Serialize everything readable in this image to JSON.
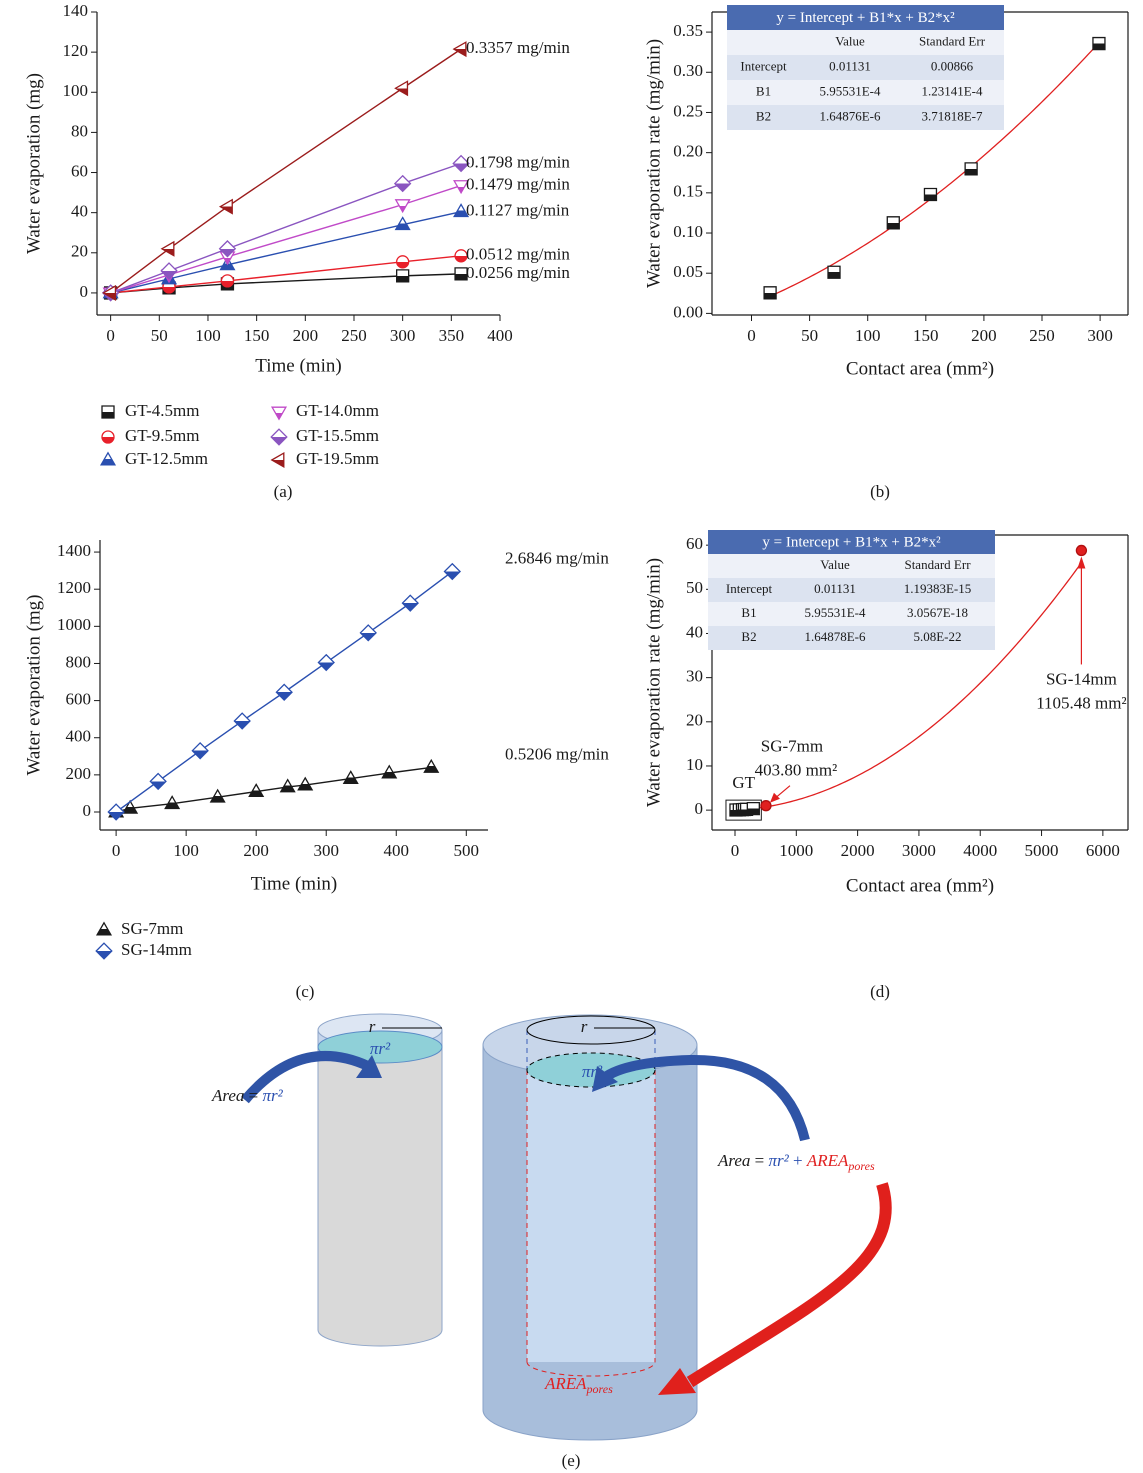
{
  "chart_data": [
    {
      "type": "line",
      "caption": "(a)",
      "x_label": "Time (min)",
      "y_label": "Water evaporation (mg)",
      "x": [
        0,
        60,
        120,
        300,
        360
      ],
      "series": [
        {
          "name": "GT-4.5mm",
          "color": "#1a1a1a",
          "marker": "square",
          "values": [
            0,
            2.5,
            4.5,
            8.5,
            9.5
          ],
          "annotation": "0.0256 mg/min"
        },
        {
          "name": "GT-9.5mm",
          "color": "#e8202a",
          "marker": "circle",
          "values": [
            0,
            3,
            6,
            15.5,
            18.5
          ],
          "annotation": "0.0512 mg/min"
        },
        {
          "name": "GT-12.5mm",
          "color": "#2a4fb0",
          "marker": "triangle-up",
          "values": [
            0,
            7,
            14,
            34,
            40.5
          ],
          "annotation": "0.1127 mg/min"
        },
        {
          "name": "GT-14.0mm",
          "color": "#c04ac8",
          "marker": "triangle-down",
          "values": [
            0,
            9,
            18,
            44,
            53.5
          ],
          "annotation": "0.1479 mg/min"
        },
        {
          "name": "GT-15.5mm",
          "color": "#8a55c0",
          "marker": "diamond",
          "values": [
            0,
            11,
            22,
            54.5,
            64.5
          ],
          "annotation": "0.1798 mg/min"
        },
        {
          "name": "GT-19.5mm",
          "color": "#9b1c1c",
          "marker": "triangle-left",
          "values": [
            0,
            22,
            43,
            102,
            121.5
          ],
          "annotation": "0.3357 mg/min"
        }
      ],
      "xlim": [
        -14,
        400
      ],
      "xticks": [
        0,
        50,
        100,
        150,
        200,
        250,
        300,
        350,
        400
      ],
      "ylim": [
        -11,
        140
      ],
      "yticks": [
        0,
        20,
        40,
        60,
        80,
        100,
        120,
        140
      ],
      "legend": "bottom-left"
    },
    {
      "type": "scatter",
      "caption": "(b)",
      "x_label": "Contact area (mm²)",
      "y_label": "Water evaporation rate (mg/min)",
      "series": [
        {
          "color": "#1a1a1a",
          "marker": "square",
          "x": [
            16,
            71,
            122,
            154,
            189,
            299
          ],
          "values": [
            0.0256,
            0.0512,
            0.1127,
            0.1479,
            0.1798,
            0.3357
          ]
        }
      ],
      "fit_color": "#e02020",
      "table": {
        "title": "y = Intercept + B1*x + B2*x²",
        "columns": [
          "Value",
          "Standard Err"
        ],
        "rows": [
          [
            "Intercept",
            "0.01131",
            "0.00866"
          ],
          [
            "B1",
            "5.95531E-4",
            "1.23141E-4"
          ],
          [
            "B2",
            "1.64876E-6",
            "3.71818E-7"
          ]
        ]
      },
      "xlim": [
        -34,
        324
      ],
      "xticks": [
        0,
        50,
        100,
        150,
        200,
        250,
        300
      ],
      "ylim": [
        -0.002,
        0.375
      ],
      "yticks": [
        {
          "value": 0,
          "label": "0.00"
        },
        {
          "value": 0.05,
          "label": "0.05"
        },
        {
          "value": 0.1,
          "label": "0.10"
        },
        {
          "value": 0.15,
          "label": "0.15"
        },
        {
          "value": 0.2,
          "label": "0.20"
        },
        {
          "value": 0.25,
          "label": "0.25"
        },
        {
          "value": 0.3,
          "label": "0.30"
        },
        {
          "value": 0.35,
          "label": "0.35"
        }
      ]
    },
    {
      "type": "line",
      "caption": "(c)",
      "x_label": "Time (min)",
      "y_label": "Water evaporation (mg)",
      "series": [
        {
          "name": "SG-7mm",
          "color": "#1a1a1a",
          "marker": "triangle-up",
          "x": [
            0,
            20,
            80,
            145,
            200,
            245,
            270,
            335,
            390,
            450
          ],
          "values": [
            0,
            20,
            45,
            80,
            110,
            135,
            145,
            180,
            210,
            240
          ],
          "annotation": "0.5206 mg/min"
        },
        {
          "name": "SG-14mm",
          "color": "#2a4fb0",
          "marker": "diamond",
          "x": [
            0,
            60,
            120,
            180,
            240,
            300,
            360,
            420,
            480
          ],
          "values": [
            0,
            165,
            330,
            490,
            645,
            805,
            965,
            1125,
            1295
          ],
          "annotation": "2.6846 mg/min"
        }
      ],
      "xlim": [
        -23,
        531
      ],
      "xticks": [
        0,
        100,
        200,
        300,
        400,
        500
      ],
      "ylim": [
        -97,
        1465
      ],
      "yticks": [
        0,
        200,
        400,
        600,
        800,
        1000,
        1200,
        1400
      ],
      "legend": "bottom-left"
    },
    {
      "type": "scatter",
      "caption": "(d)",
      "x_label": "Contact area (mm²)",
      "y_label": "Water evaporation rate (mg/min)",
      "series": [
        {
          "name": "GT",
          "color": "#1a1a1a",
          "marker": "square",
          "x": [
            16,
            71,
            122,
            154,
            189,
            299
          ],
          "values": [
            0.0256,
            0.0512,
            0.1127,
            0.1479,
            0.1798,
            0.3357
          ]
        },
        {
          "name": "SG-7mm",
          "color": "#e02020",
          "marker": "ball",
          "x": [
            505
          ],
          "values": [
            1.0
          ],
          "annotation": "403.80 mm²"
        },
        {
          "name": "SG-14mm",
          "color": "#e02020",
          "marker": "ball",
          "x": [
            5650
          ],
          "values": [
            58.8
          ],
          "annotation": "1105.48 mm²"
        }
      ],
      "fit_color": "#e02020",
      "table": {
        "title": "y = Intercept + B1*x + B2*x²",
        "columns": [
          "Value",
          "Standard Err"
        ],
        "rows": [
          [
            "Intercept",
            "0.01131",
            "1.19383E-15"
          ],
          [
            "B1",
            "5.95531E-4",
            "3.0567E-18"
          ],
          [
            "B2",
            "1.64878E-6",
            "5.08E-22"
          ]
        ]
      },
      "xlim": [
        -375,
        6410
      ],
      "xticks": [
        0,
        1000,
        2000,
        3000,
        4000,
        5000,
        6000
      ],
      "ylim": [
        -4.5,
        62.3
      ],
      "yticks": [
        0,
        10,
        20,
        30,
        40,
        50,
        60
      ]
    }
  ],
  "diagram": {
    "caption": "(e)",
    "left": {
      "radius": "r",
      "surface": "πr²",
      "formula": {
        "lhs": "Area",
        "eq": "=",
        "rhs": "πr²"
      }
    },
    "right": {
      "radius": "r",
      "surface": "πr²",
      "formula": {
        "lhs": "Area",
        "eq": "=",
        "rhs": "πr²",
        "plus": "+",
        "pores": "AREA",
        "pores_sub": "pores"
      },
      "pores_label": {
        "main": "AREA",
        "sub": "pores"
      }
    }
  }
}
